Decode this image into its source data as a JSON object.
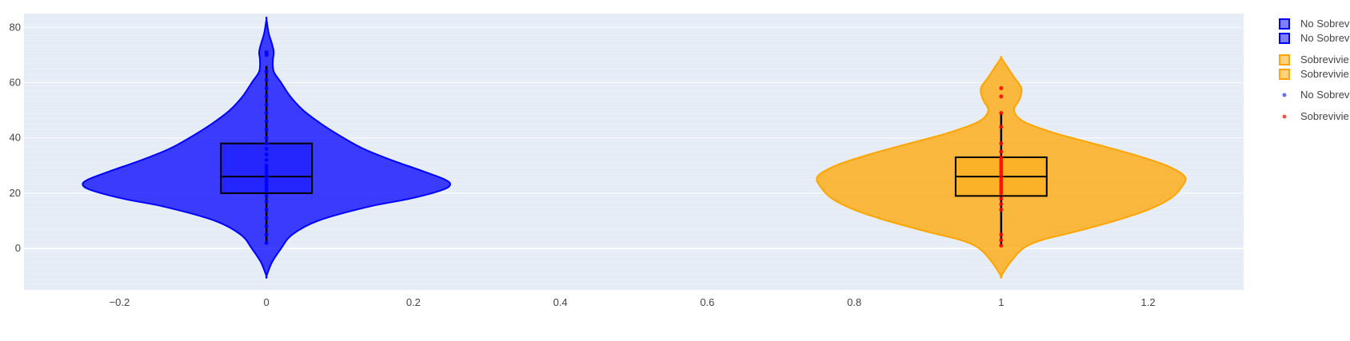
{
  "chart_data": {
    "type": "violin",
    "title": "",
    "xlabel": "",
    "ylabel": "",
    "xlim": [
      -0.33,
      1.33
    ],
    "ylim": [
      -15,
      85
    ],
    "x_ticks": [
      -0.2,
      0,
      0.2,
      0.4,
      0.6,
      0.8,
      1,
      1.2
    ],
    "x_tick_labels": [
      "−0.2",
      "0",
      "0.2",
      "0.4",
      "0.6",
      "0.8",
      "1",
      "1.2"
    ],
    "y_ticks": [
      0,
      20,
      40,
      60,
      80
    ],
    "y_tick_labels": [
      "0",
      "20",
      "40",
      "60",
      "80"
    ],
    "grid": true,
    "legend_position": "right",
    "colors": {
      "plot_bg": "#e5ecf6",
      "grid": "#ffffff",
      "violin_blue": "#0000ff",
      "violin_orange": "#ffa500",
      "box_line": "#000000",
      "point_blue": "#0000ff",
      "point_red": "#ff0000",
      "legend_point_blue": "#636efa",
      "legend_point_red": "#ef553b"
    },
    "series": [
      {
        "name": "No Sobreviv",
        "x": 0,
        "color": "#0000ff",
        "violin_halfwidth": 0.25,
        "range": [
          -10,
          83
        ],
        "density": [
          [
            -10,
            0.0
          ],
          [
            -5,
            0.03
          ],
          [
            0,
            0.08
          ],
          [
            5,
            0.14
          ],
          [
            10,
            0.28
          ],
          [
            15,
            0.55
          ],
          [
            18,
            0.78
          ],
          [
            21,
            0.95
          ],
          [
            23,
            1.0
          ],
          [
            25,
            0.97
          ],
          [
            28,
            0.85
          ],
          [
            32,
            0.68
          ],
          [
            36,
            0.53
          ],
          [
            40,
            0.42
          ],
          [
            45,
            0.3
          ],
          [
            50,
            0.2
          ],
          [
            55,
            0.13
          ],
          [
            60,
            0.08
          ],
          [
            64,
            0.04
          ],
          [
            68,
            0.035
          ],
          [
            71,
            0.04
          ],
          [
            74,
            0.03
          ],
          [
            78,
            0.012
          ],
          [
            83,
            0.0
          ]
        ],
        "box": {
          "q1": 20,
          "median": 26,
          "q3": 38,
          "lower_fence": 2,
          "upper_fence": 66,
          "halfwidth": 0.062
        },
        "points": [
          2,
          5,
          8,
          11,
          14,
          17,
          19,
          21,
          22,
          23,
          24,
          25,
          26,
          27,
          28,
          29,
          30,
          32,
          34,
          36,
          38,
          40,
          43,
          46,
          49,
          52,
          55,
          58,
          61,
          64,
          70,
          71
        ],
        "point_color": "#0000ff"
      },
      {
        "name": "Sobrevivie",
        "x": 1,
        "color": "#ffa500",
        "violin_halfwidth": 0.25,
        "range": [
          -10,
          69
        ],
        "density": [
          [
            -10,
            0.0
          ],
          [
            -5,
            0.05
          ],
          [
            0,
            0.12
          ],
          [
            3,
            0.22
          ],
          [
            6,
            0.4
          ],
          [
            10,
            0.62
          ],
          [
            14,
            0.8
          ],
          [
            18,
            0.92
          ],
          [
            22,
            0.98
          ],
          [
            26,
            1.0
          ],
          [
            30,
            0.9
          ],
          [
            34,
            0.72
          ],
          [
            38,
            0.5
          ],
          [
            42,
            0.28
          ],
          [
            46,
            0.12
          ],
          [
            50,
            0.07
          ],
          [
            54,
            0.1
          ],
          [
            58,
            0.11
          ],
          [
            62,
            0.07
          ],
          [
            66,
            0.03
          ],
          [
            69,
            0.0
          ]
        ],
        "box": {
          "q1": 19,
          "median": 26,
          "q3": 33,
          "lower_fence": 1,
          "upper_fence": 49,
          "halfwidth": 0.062
        },
        "points": [
          1,
          3,
          5,
          14,
          16,
          18,
          20,
          21,
          22,
          23,
          24,
          25,
          26,
          27,
          28,
          29,
          30,
          31,
          32,
          33,
          35,
          38,
          44,
          49,
          55,
          58
        ],
        "point_color": "#ff0000"
      }
    ],
    "legend": [
      {
        "label": "No Sobreviv",
        "kind": "box-swatch",
        "color": "#0000ff"
      },
      {
        "label": "No Sobreviv",
        "kind": "box-swatch",
        "color": "#0000ff"
      },
      {
        "label": "Sobrevivie",
        "kind": "box-swatch",
        "color": "#ffa500"
      },
      {
        "label": "Sobrevivie",
        "kind": "box-swatch",
        "color": "#ffa500"
      },
      {
        "label": "No Sobreviv",
        "kind": "point",
        "color": "#636efa"
      },
      {
        "label": "Sobrevivie",
        "kind": "point",
        "color": "#ef553b"
      }
    ]
  }
}
